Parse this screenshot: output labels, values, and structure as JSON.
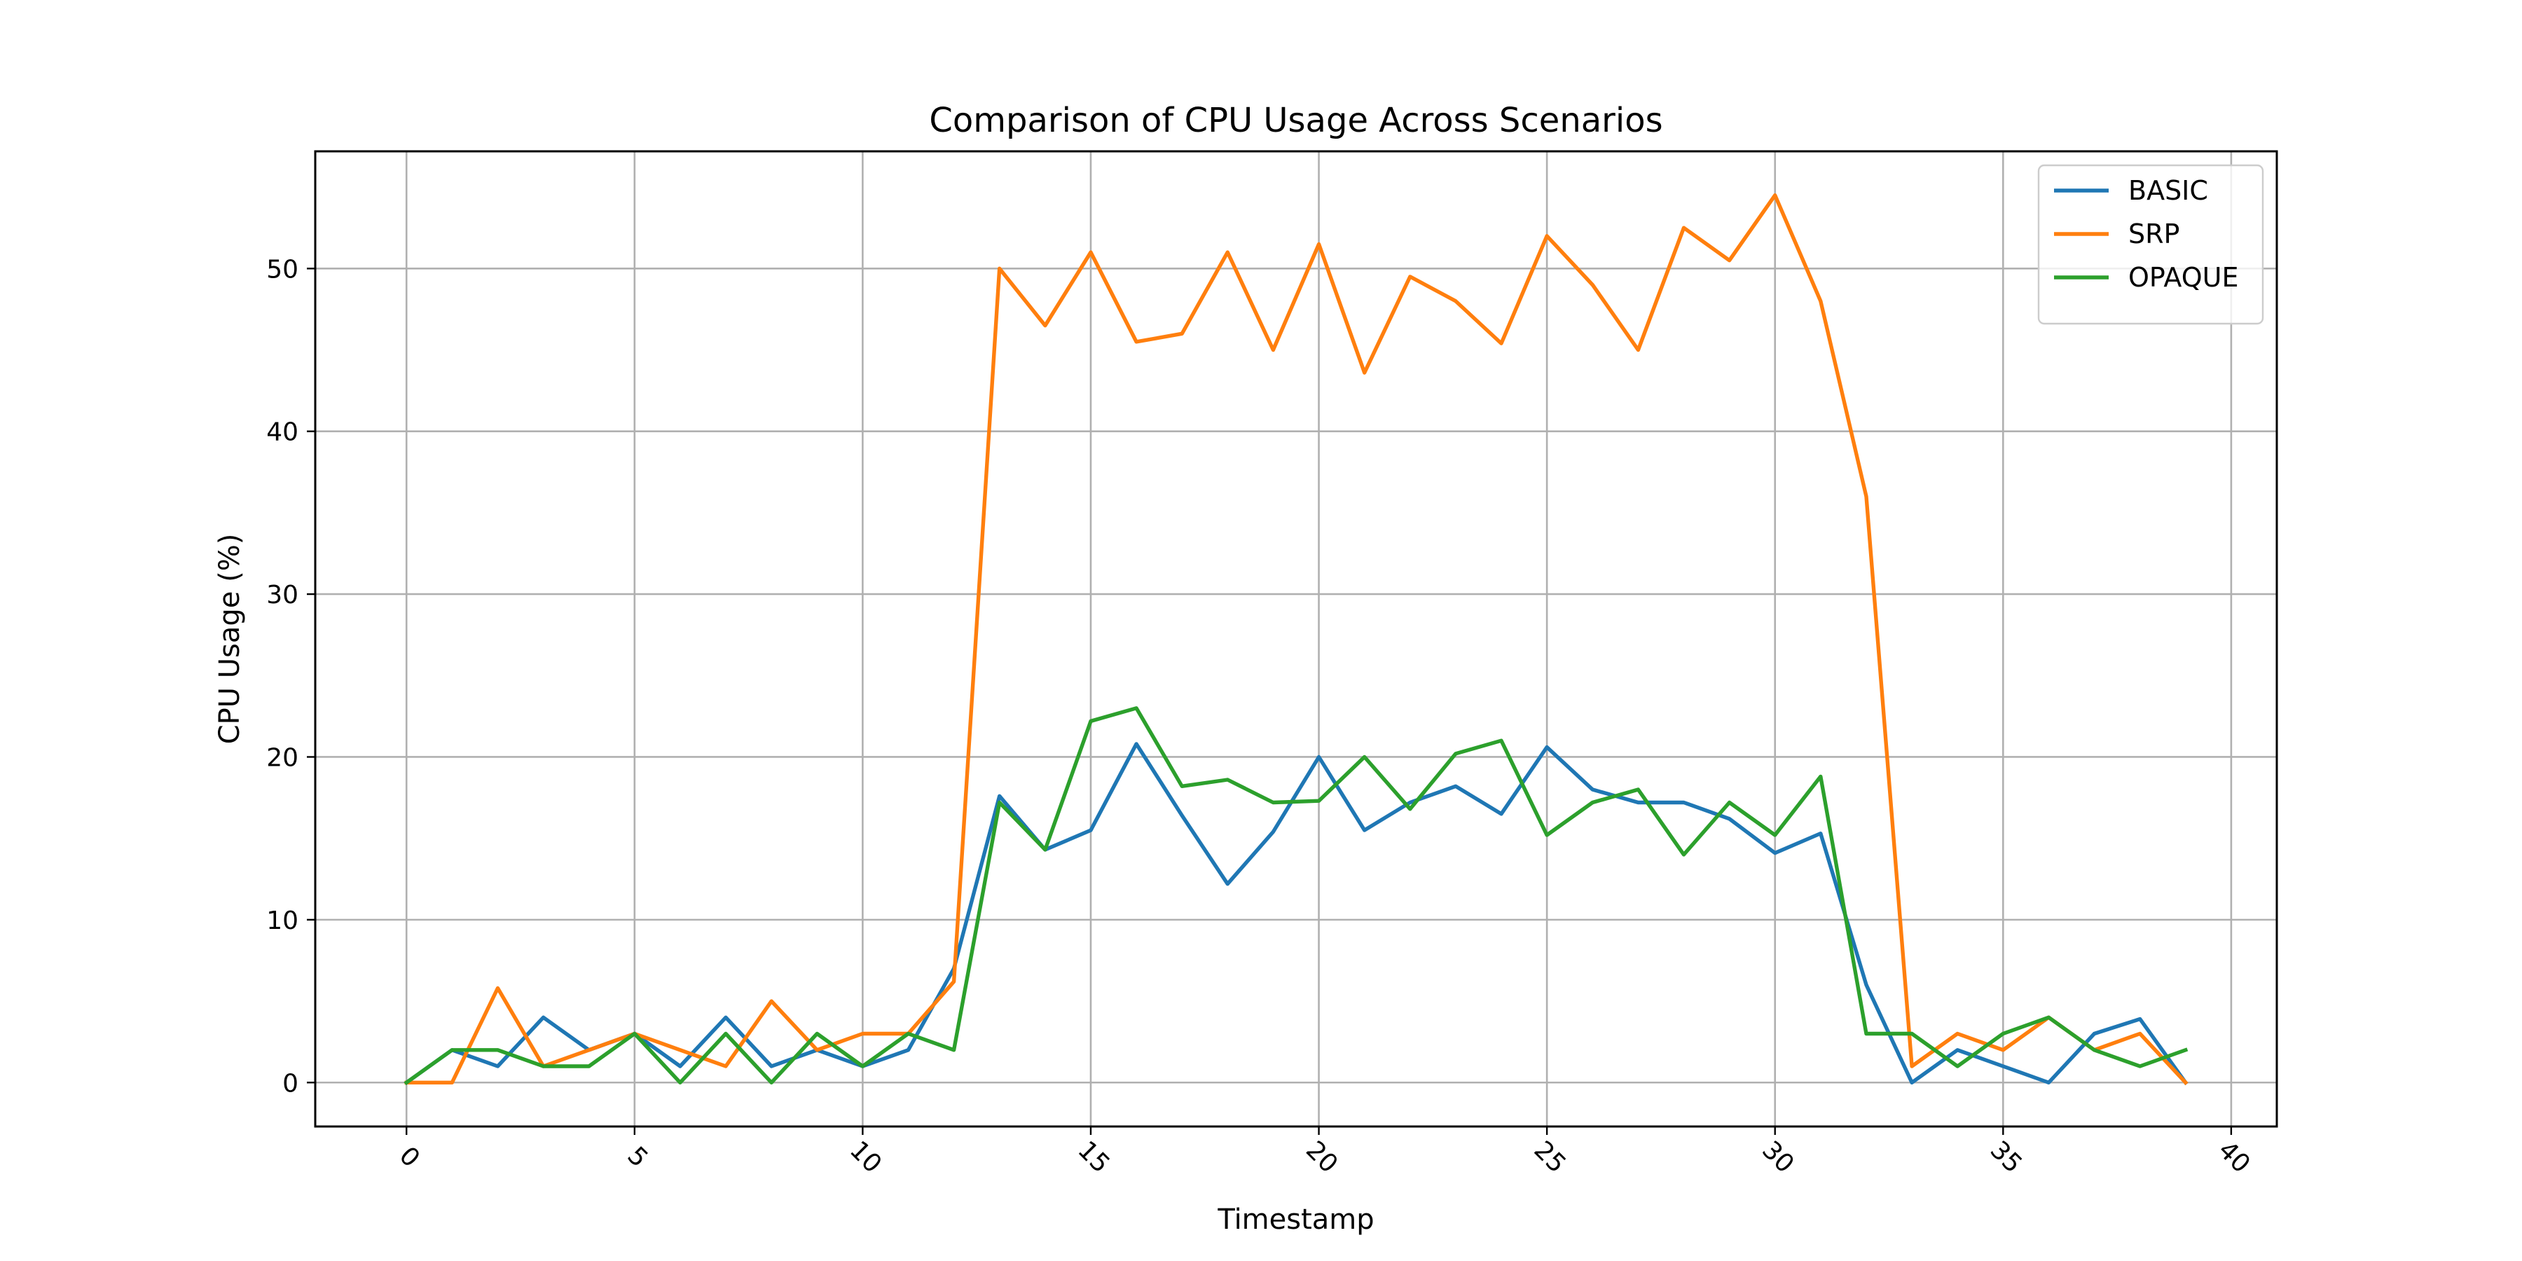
{
  "chart_data": {
    "type": "line",
    "title": "Comparison of CPU Usage Across Scenarios",
    "xlabel": "Timestamp",
    "ylabel": "CPU Usage (%)",
    "xlim": [
      -2,
      41
    ],
    "ylim": [
      -2.7,
      57.2
    ],
    "xticks": [
      0,
      5,
      10,
      15,
      20,
      25,
      30,
      35,
      40
    ],
    "xtick_labels": [
      "0",
      "5",
      "10",
      "15",
      "20",
      "25",
      "30",
      "35",
      "40"
    ],
    "yticks": [
      0,
      10,
      20,
      30,
      40,
      50
    ],
    "ytick_labels": [
      "0",
      "10",
      "20",
      "30",
      "40",
      "50"
    ],
    "x_tick_rotation": 45,
    "grid": true,
    "legend_position": "top-right",
    "x": [
      0,
      1,
      2,
      3,
      4,
      5,
      6,
      7,
      8,
      9,
      10,
      11,
      12,
      13,
      14,
      15,
      16,
      17,
      18,
      19,
      20,
      21,
      22,
      23,
      24,
      25,
      26,
      27,
      28,
      29,
      30,
      31,
      32,
      33,
      34,
      35,
      36,
      37,
      38,
      39
    ],
    "series": [
      {
        "name": "BASIC",
        "color": "#1f77b4",
        "values": [
          0,
          2,
          1,
          4,
          2,
          3,
          1,
          4,
          1,
          2,
          1,
          2,
          7,
          17.6,
          14.3,
          15.5,
          20.8,
          16.4,
          12.2,
          15.4,
          20,
          15.5,
          17.2,
          18.2,
          16.5,
          20.6,
          18,
          17.2,
          17.2,
          16.2,
          14.1,
          15.3,
          6,
          0,
          2,
          1,
          0,
          3,
          3.9,
          0
        ]
      },
      {
        "name": "SRP",
        "color": "#ff7f0e",
        "values": [
          0,
          0,
          5.8,
          1,
          2,
          3,
          2,
          1,
          5,
          2,
          3,
          3,
          6.2,
          50,
          46.5,
          51,
          45.5,
          46,
          51,
          45,
          51.5,
          43.6,
          49.5,
          48,
          45.4,
          52,
          49,
          45,
          52.5,
          50.5,
          54.5,
          48,
          36,
          1,
          3,
          2,
          4,
          2,
          3,
          0
        ]
      },
      {
        "name": "OPAQUE",
        "color": "#2ca02c",
        "values": [
          0,
          2,
          2,
          1,
          1,
          3,
          0,
          3,
          0,
          3,
          1,
          3,
          2,
          17.2,
          14.3,
          22.2,
          23,
          18.2,
          18.6,
          17.2,
          17.3,
          20,
          16.8,
          20.2,
          21,
          15.2,
          17.2,
          18,
          14,
          17.2,
          15.2,
          18.8,
          3,
          3,
          1,
          3,
          4,
          2,
          1,
          2
        ]
      }
    ]
  }
}
